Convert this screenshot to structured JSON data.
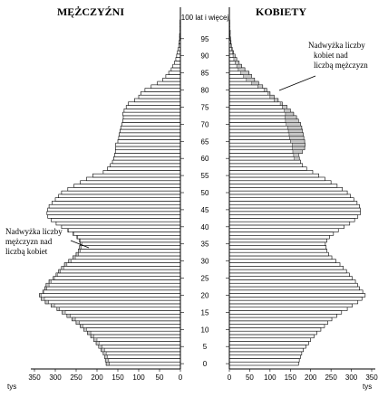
{
  "chart_data": {
    "type": "bar",
    "subtype": "population-pyramid",
    "title_left": "MĘŻCZYŹNI",
    "title_right": "KOBIETY",
    "top_age_label": "100 lat i więcej",
    "unit_label": "tys",
    "xlim": [
      0,
      350
    ],
    "x_ticks": [
      350,
      300,
      250,
      200,
      150,
      100,
      50,
      0
    ],
    "age_ticks": [
      0,
      5,
      10,
      15,
      20,
      25,
      30,
      35,
      40,
      45,
      50,
      55,
      60,
      65,
      70,
      75,
      80,
      85,
      90,
      95
    ],
    "annotation_left": [
      "Nadwyżka liczby",
      "mężczyzn nad",
      "liczbą kobiet"
    ],
    "annotation_right": [
      "Nadwyżka liczby",
      "kobiet nad",
      "liczbą mężczyzn"
    ],
    "ages": [
      0,
      1,
      2,
      3,
      4,
      5,
      6,
      7,
      8,
      9,
      10,
      11,
      12,
      13,
      14,
      15,
      16,
      17,
      18,
      19,
      20,
      21,
      22,
      23,
      24,
      25,
      26,
      27,
      28,
      29,
      30,
      31,
      32,
      33,
      34,
      35,
      36,
      37,
      38,
      39,
      40,
      41,
      42,
      43,
      44,
      45,
      46,
      47,
      48,
      49,
      50,
      51,
      52,
      53,
      54,
      55,
      56,
      57,
      58,
      59,
      60,
      61,
      62,
      63,
      64,
      65,
      66,
      67,
      68,
      69,
      70,
      71,
      72,
      73,
      74,
      75,
      76,
      77,
      78,
      79,
      80,
      81,
      82,
      83,
      84,
      85,
      86,
      87,
      88,
      89,
      90,
      91,
      92,
      93,
      94,
      95,
      96,
      97,
      98,
      99,
      100
    ],
    "series": [
      {
        "name": "MĘŻCZYŹNI",
        "values": [
          178,
          180,
          182,
          185,
          190,
          196,
          202,
          208,
          215,
          223,
          232,
          240,
          250,
          260,
          272,
          284,
          296,
          310,
          324,
          334,
          338,
          330,
          325,
          322,
          315,
          305,
          298,
          292,
          285,
          278,
          268,
          258,
          250,
          245,
          242,
          240,
          242,
          248,
          258,
          270,
          285,
          298,
          310,
          318,
          320,
          318,
          315,
          308,
          300,
          292,
          285,
          270,
          255,
          240,
          225,
          210,
          185,
          175,
          168,
          163,
          160,
          158,
          156,
          155,
          155,
          150,
          148,
          147,
          145,
          143,
          140,
          138,
          137,
          138,
          135,
          130,
          125,
          110,
          100,
          95,
          85,
          70,
          55,
          42,
          35,
          28,
          22,
          18,
          14,
          11,
          9,
          7,
          5,
          4,
          3,
          2,
          2,
          1,
          1,
          1,
          1
        ]
      },
      {
        "name": "KOBIETY",
        "values": [
          170,
          172,
          175,
          178,
          182,
          188,
          195,
          200,
          208,
          215,
          225,
          234,
          242,
          252,
          264,
          276,
          290,
          302,
          316,
          326,
          334,
          328,
          320,
          315,
          310,
          302,
          295,
          288,
          280,
          272,
          262,
          252,
          244,
          240,
          238,
          236,
          240,
          246,
          256,
          268,
          282,
          296,
          308,
          316,
          322,
          322,
          320,
          314,
          306,
          298,
          290,
          278,
          265,
          250,
          235,
          220,
          205,
          190,
          180,
          175,
          172,
          170,
          180,
          185,
          186,
          185,
          183,
          182,
          180,
          178,
          175,
          170,
          165,
          158,
          150,
          142,
          130,
          120,
          110,
          100,
          92,
          82,
          72,
          62,
          55,
          48,
          38,
          30,
          24,
          18,
          14,
          10,
          7,
          5,
          4,
          3,
          2,
          2,
          1,
          1,
          1
        ]
      }
    ]
  }
}
